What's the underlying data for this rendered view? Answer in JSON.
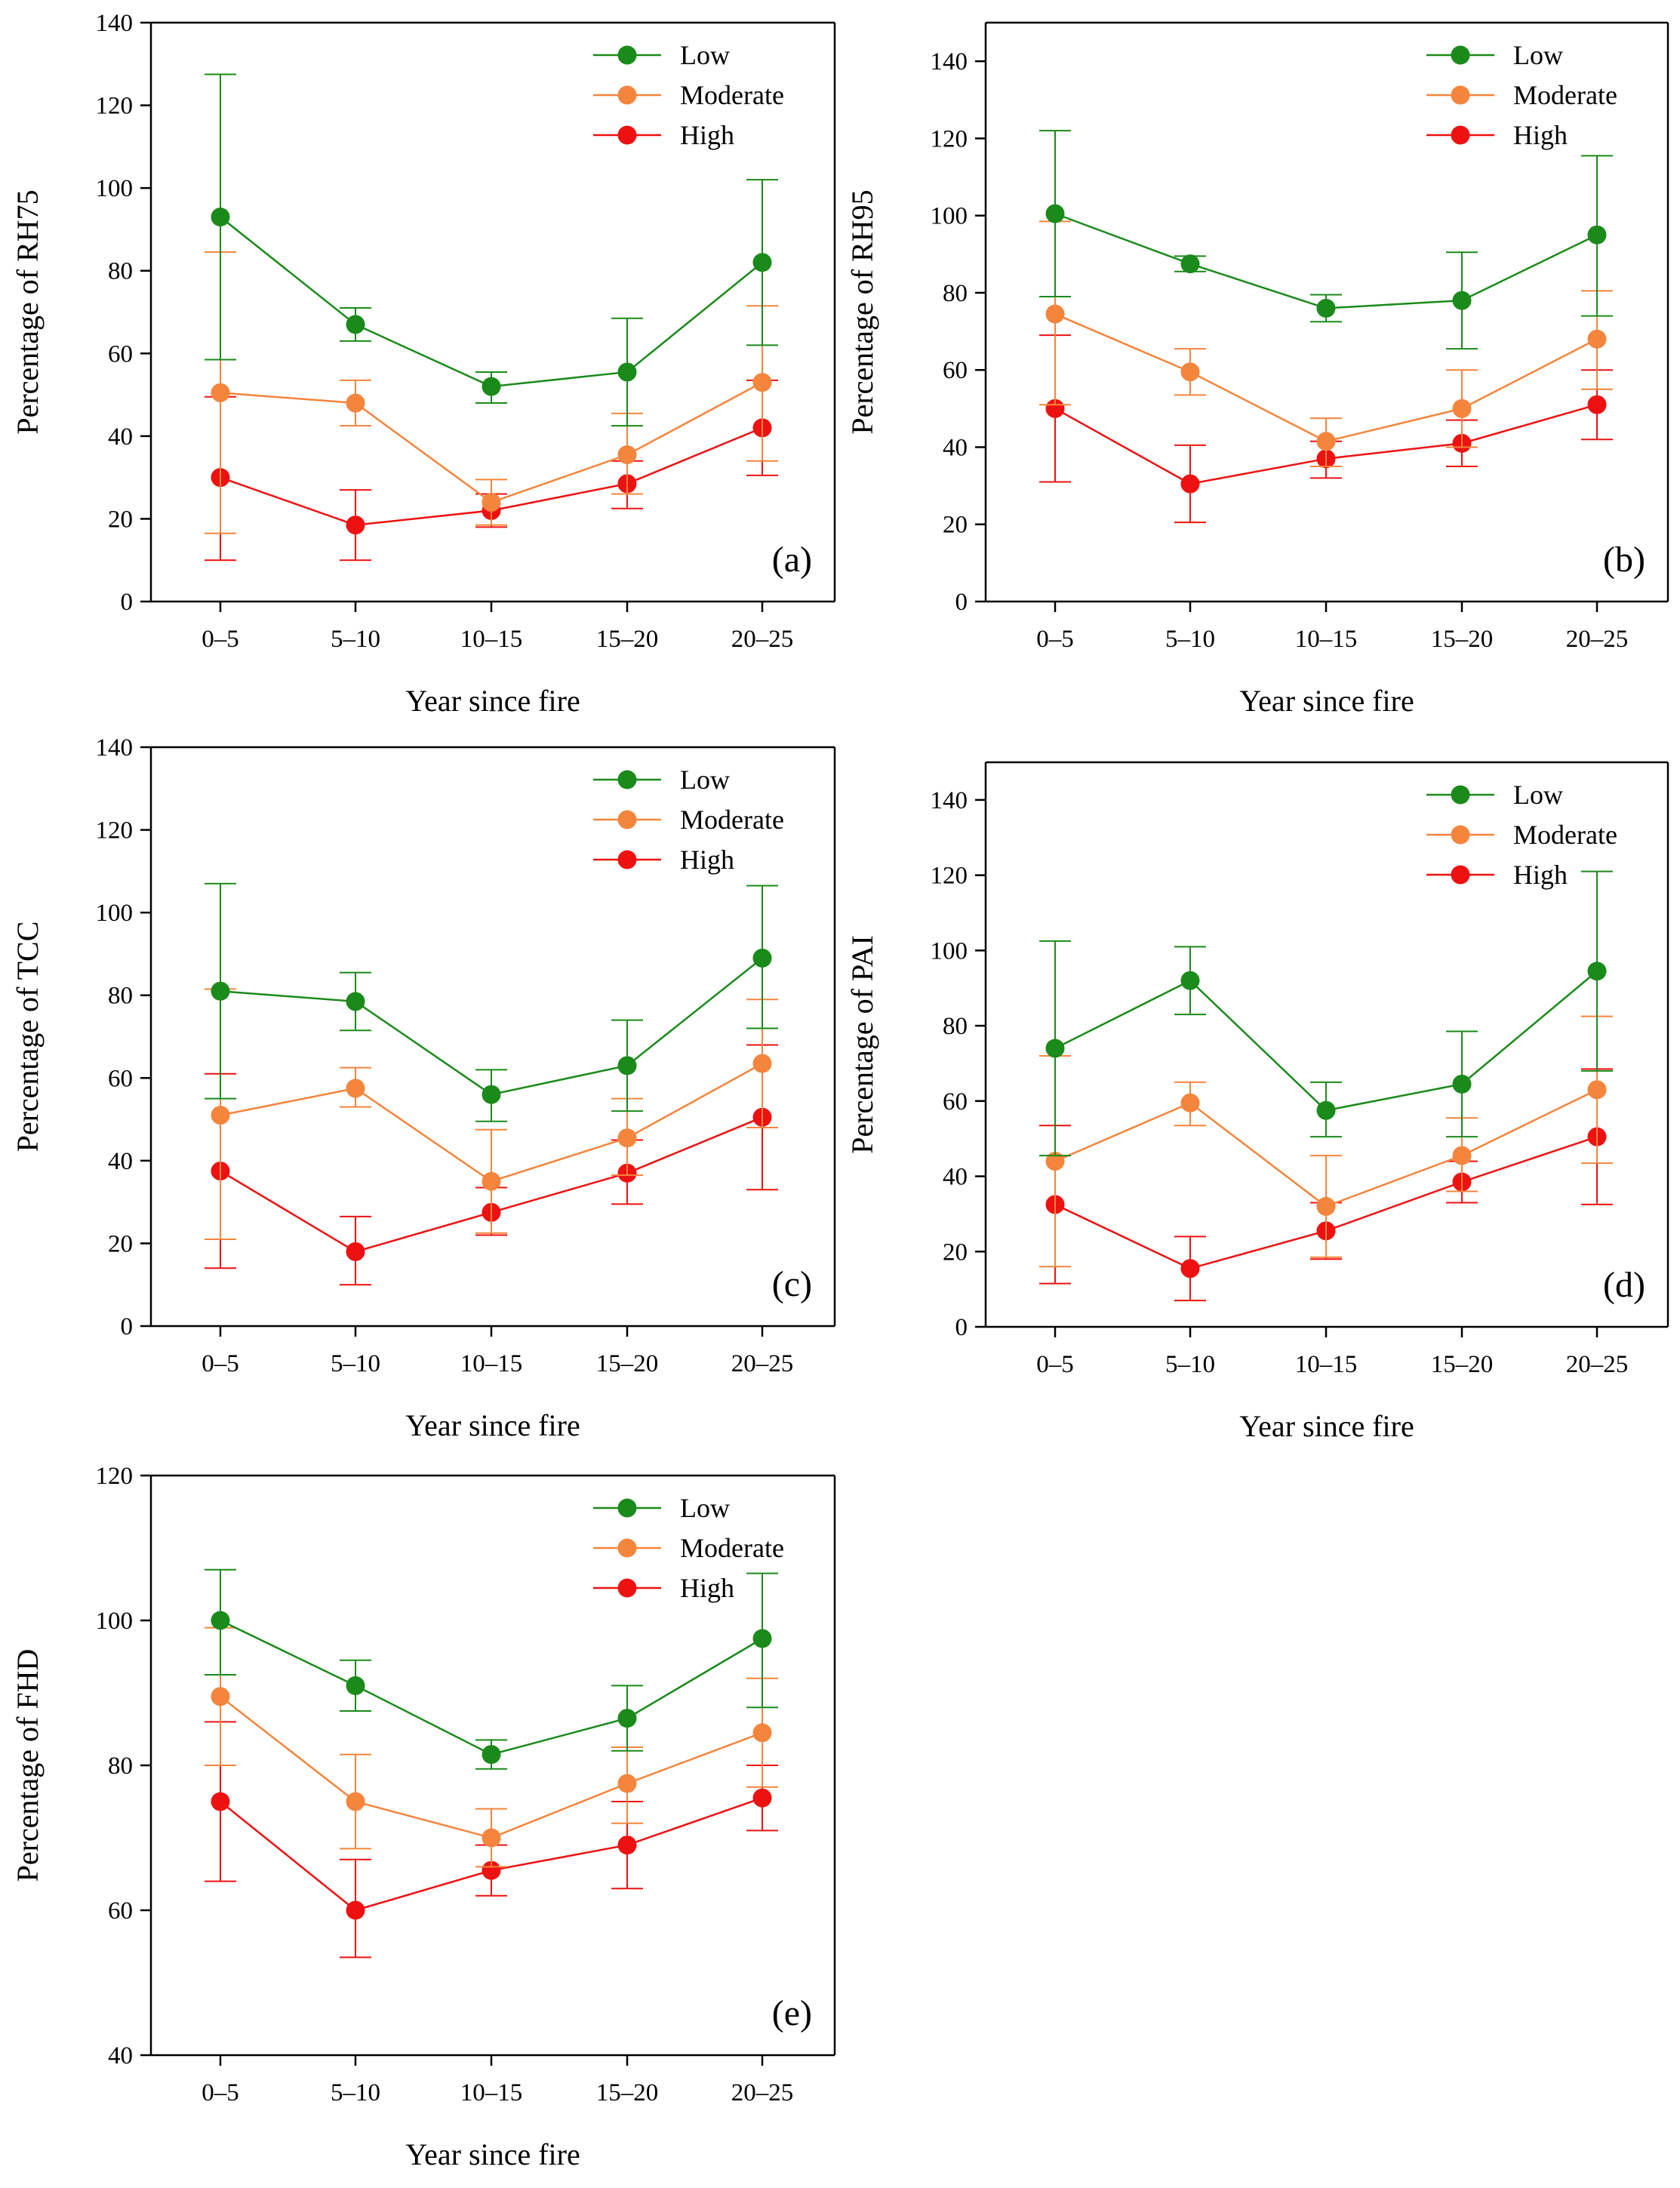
{
  "colors": {
    "Low": "#1a8a1a",
    "Moderate": "#f4853c",
    "High": "#ee1111",
    "axis": "#000000"
  },
  "chart_data": [
    {
      "type": "line",
      "panel_label": "(a)",
      "ylabel": "Percentage of RH75",
      "xlabel": "Year since fire",
      "categories": [
        "0–5",
        "5–10",
        "10–15",
        "15–20",
        "20–25"
      ],
      "ylim": [
        0,
        140
      ],
      "yticks": [
        0,
        20,
        40,
        60,
        80,
        100,
        120,
        140
      ],
      "legend": "top-right",
      "series": [
        {
          "name": "Low",
          "values": [
            93,
            67,
            52,
            55.5,
            82
          ],
          "lower": [
            58.5,
            63,
            48,
            42.5,
            62
          ],
          "upper": [
            127.5,
            71,
            55.5,
            68.5,
            102
          ]
        },
        {
          "name": "Moderate",
          "values": [
            50.5,
            48,
            24,
            35.5,
            53
          ],
          "lower": [
            16.5,
            42.5,
            18.5,
            26,
            34
          ],
          "upper": [
            84.5,
            53.5,
            29.5,
            45.5,
            71.5
          ]
        },
        {
          "name": "High",
          "values": [
            30,
            18.5,
            22,
            28.5,
            42
          ],
          "lower": [
            10,
            10,
            18,
            22.5,
            30.5
          ],
          "upper": [
            49.5,
            27,
            26,
            34,
            53.5
          ]
        }
      ]
    },
    {
      "type": "line",
      "panel_label": "(b)",
      "ylabel": "Percentage of RH95",
      "xlabel": "Year since fire",
      "categories": [
        "0–5",
        "5–10",
        "10–15",
        "15–20",
        "20–25"
      ],
      "ylim": [
        0,
        150
      ],
      "yticks": [
        0,
        20,
        40,
        60,
        80,
        100,
        120,
        140
      ],
      "legend": "top-right",
      "series": [
        {
          "name": "Low",
          "values": [
            100.5,
            87.5,
            76,
            78,
            95
          ],
          "lower": [
            79,
            85.5,
            72.5,
            65.5,
            74
          ],
          "upper": [
            122,
            89.5,
            79.5,
            90.5,
            115.5
          ]
        },
        {
          "name": "Moderate",
          "values": [
            74.5,
            59.5,
            41.5,
            50,
            68
          ],
          "lower": [
            51,
            53.5,
            35,
            40,
            55
          ],
          "upper": [
            98.5,
            65.5,
            47.5,
            60,
            80.5
          ]
        },
        {
          "name": "High",
          "values": [
            50,
            30.5,
            37,
            41,
            51
          ],
          "lower": [
            31,
            20.5,
            32,
            35,
            42
          ],
          "upper": [
            69,
            40.5,
            41.5,
            47,
            60
          ]
        }
      ]
    },
    {
      "type": "line",
      "panel_label": "(c)",
      "ylabel": "Percentage of TCC",
      "xlabel": "Year since fire",
      "categories": [
        "0–5",
        "5–10",
        "10–15",
        "15–20",
        "20–25"
      ],
      "ylim": [
        0,
        140
      ],
      "yticks": [
        0,
        20,
        40,
        60,
        80,
        100,
        120,
        140
      ],
      "legend": "top-right",
      "series": [
        {
          "name": "Low",
          "values": [
            81,
            78.5,
            56,
            63,
            89
          ],
          "lower": [
            55,
            71.5,
            49.5,
            52,
            72
          ],
          "upper": [
            107,
            85.5,
            62,
            74,
            106.5
          ]
        },
        {
          "name": "Moderate",
          "values": [
            51,
            57.5,
            35,
            45.5,
            63.5
          ],
          "lower": [
            21,
            53,
            22.5,
            36.5,
            48
          ],
          "upper": [
            81.5,
            62.5,
            47.5,
            55,
            79
          ]
        },
        {
          "name": "High",
          "values": [
            37.5,
            18,
            27.5,
            37,
            50.5
          ],
          "lower": [
            14,
            10,
            22,
            29.5,
            33
          ],
          "upper": [
            61,
            26.5,
            33.5,
            45,
            68
          ]
        }
      ]
    },
    {
      "type": "line",
      "panel_label": "(d)",
      "ylabel": "Percentage of PAI",
      "xlabel": "Year since fire",
      "categories": [
        "0–5",
        "5–10",
        "10–15",
        "15–20",
        "20–25"
      ],
      "ylim": [
        0,
        150
      ],
      "yticks": [
        0,
        20,
        40,
        60,
        80,
        100,
        120,
        140
      ],
      "legend": "top-right",
      "series": [
        {
          "name": "Low",
          "values": [
            74,
            92,
            57.5,
            64.5,
            94.5
          ],
          "lower": [
            45.5,
            83,
            50.5,
            50.5,
            68
          ],
          "upper": [
            102.5,
            101,
            65,
            78.5,
            121
          ]
        },
        {
          "name": "Moderate",
          "values": [
            44,
            59.5,
            32,
            45.5,
            63
          ],
          "lower": [
            16,
            53.5,
            18.5,
            36,
            43.5
          ],
          "upper": [
            72,
            65,
            45.5,
            55.5,
            82.5
          ]
        },
        {
          "name": "High",
          "values": [
            32.5,
            15.5,
            25.5,
            38.5,
            50.5
          ],
          "lower": [
            11.5,
            7,
            18,
            33,
            32.5
          ],
          "upper": [
            53.5,
            24,
            33,
            44,
            68.5
          ]
        }
      ]
    },
    {
      "type": "line",
      "panel_label": "(e)",
      "ylabel": "Percentage of FHD",
      "xlabel": "Year since fire",
      "categories": [
        "0–5",
        "5–10",
        "10–15",
        "15–20",
        "20–25"
      ],
      "ylim": [
        40,
        120
      ],
      "yticks": [
        40,
        60,
        80,
        100,
        120
      ],
      "legend": "top-right",
      "series": [
        {
          "name": "Low",
          "values": [
            100,
            91,
            81.5,
            86.5,
            97.5
          ],
          "lower": [
            92.5,
            87.5,
            79.5,
            82,
            88
          ],
          "upper": [
            107,
            94.5,
            83.5,
            91,
            106.5
          ]
        },
        {
          "name": "Moderate",
          "values": [
            89.5,
            75,
            70,
            77.5,
            84.5
          ],
          "lower": [
            80,
            68.5,
            66,
            72,
            77
          ],
          "upper": [
            99,
            81.5,
            74,
            82.5,
            92
          ]
        },
        {
          "name": "High",
          "values": [
            75,
            60,
            65.5,
            69,
            75.5
          ],
          "lower": [
            64,
            53.5,
            62,
            63,
            71
          ],
          "upper": [
            86,
            67,
            69,
            75,
            80
          ]
        }
      ]
    }
  ]
}
